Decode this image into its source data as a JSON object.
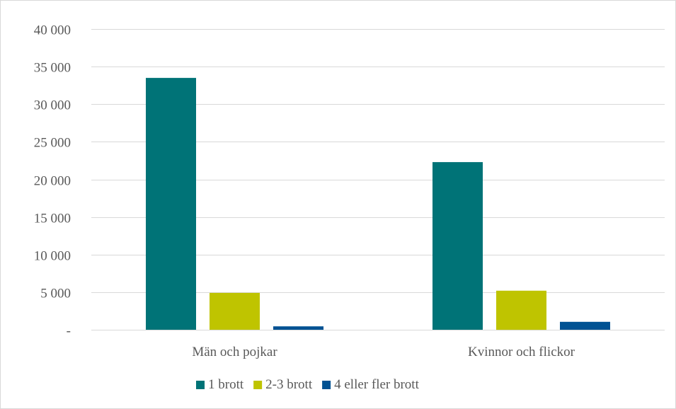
{
  "chart_data": {
    "type": "bar",
    "categories": [
      "Män och pojkar",
      "Kvinnor och flickor"
    ],
    "series": [
      {
        "name": "1 brott",
        "values": [
          33500,
          22300
        ],
        "color": "#007377"
      },
      {
        "name": "2-3 brott",
        "values": [
          4900,
          5200
        ],
        "color": "#bfc400"
      },
      {
        "name": "4 eller fler brott",
        "values": [
          450,
          1050
        ],
        "color": "#005293"
      }
    ],
    "ylim": [
      0,
      40000
    ],
    "yticks": [
      0,
      5000,
      10000,
      15000,
      20000,
      25000,
      30000,
      35000,
      40000
    ],
    "ytick_labels": [
      "-",
      "5 000",
      "10 000",
      "15 000",
      "20 000",
      "25 000",
      "30 000",
      "35 000",
      "40 000"
    ],
    "grid": true,
    "legend_position": "bottom"
  }
}
